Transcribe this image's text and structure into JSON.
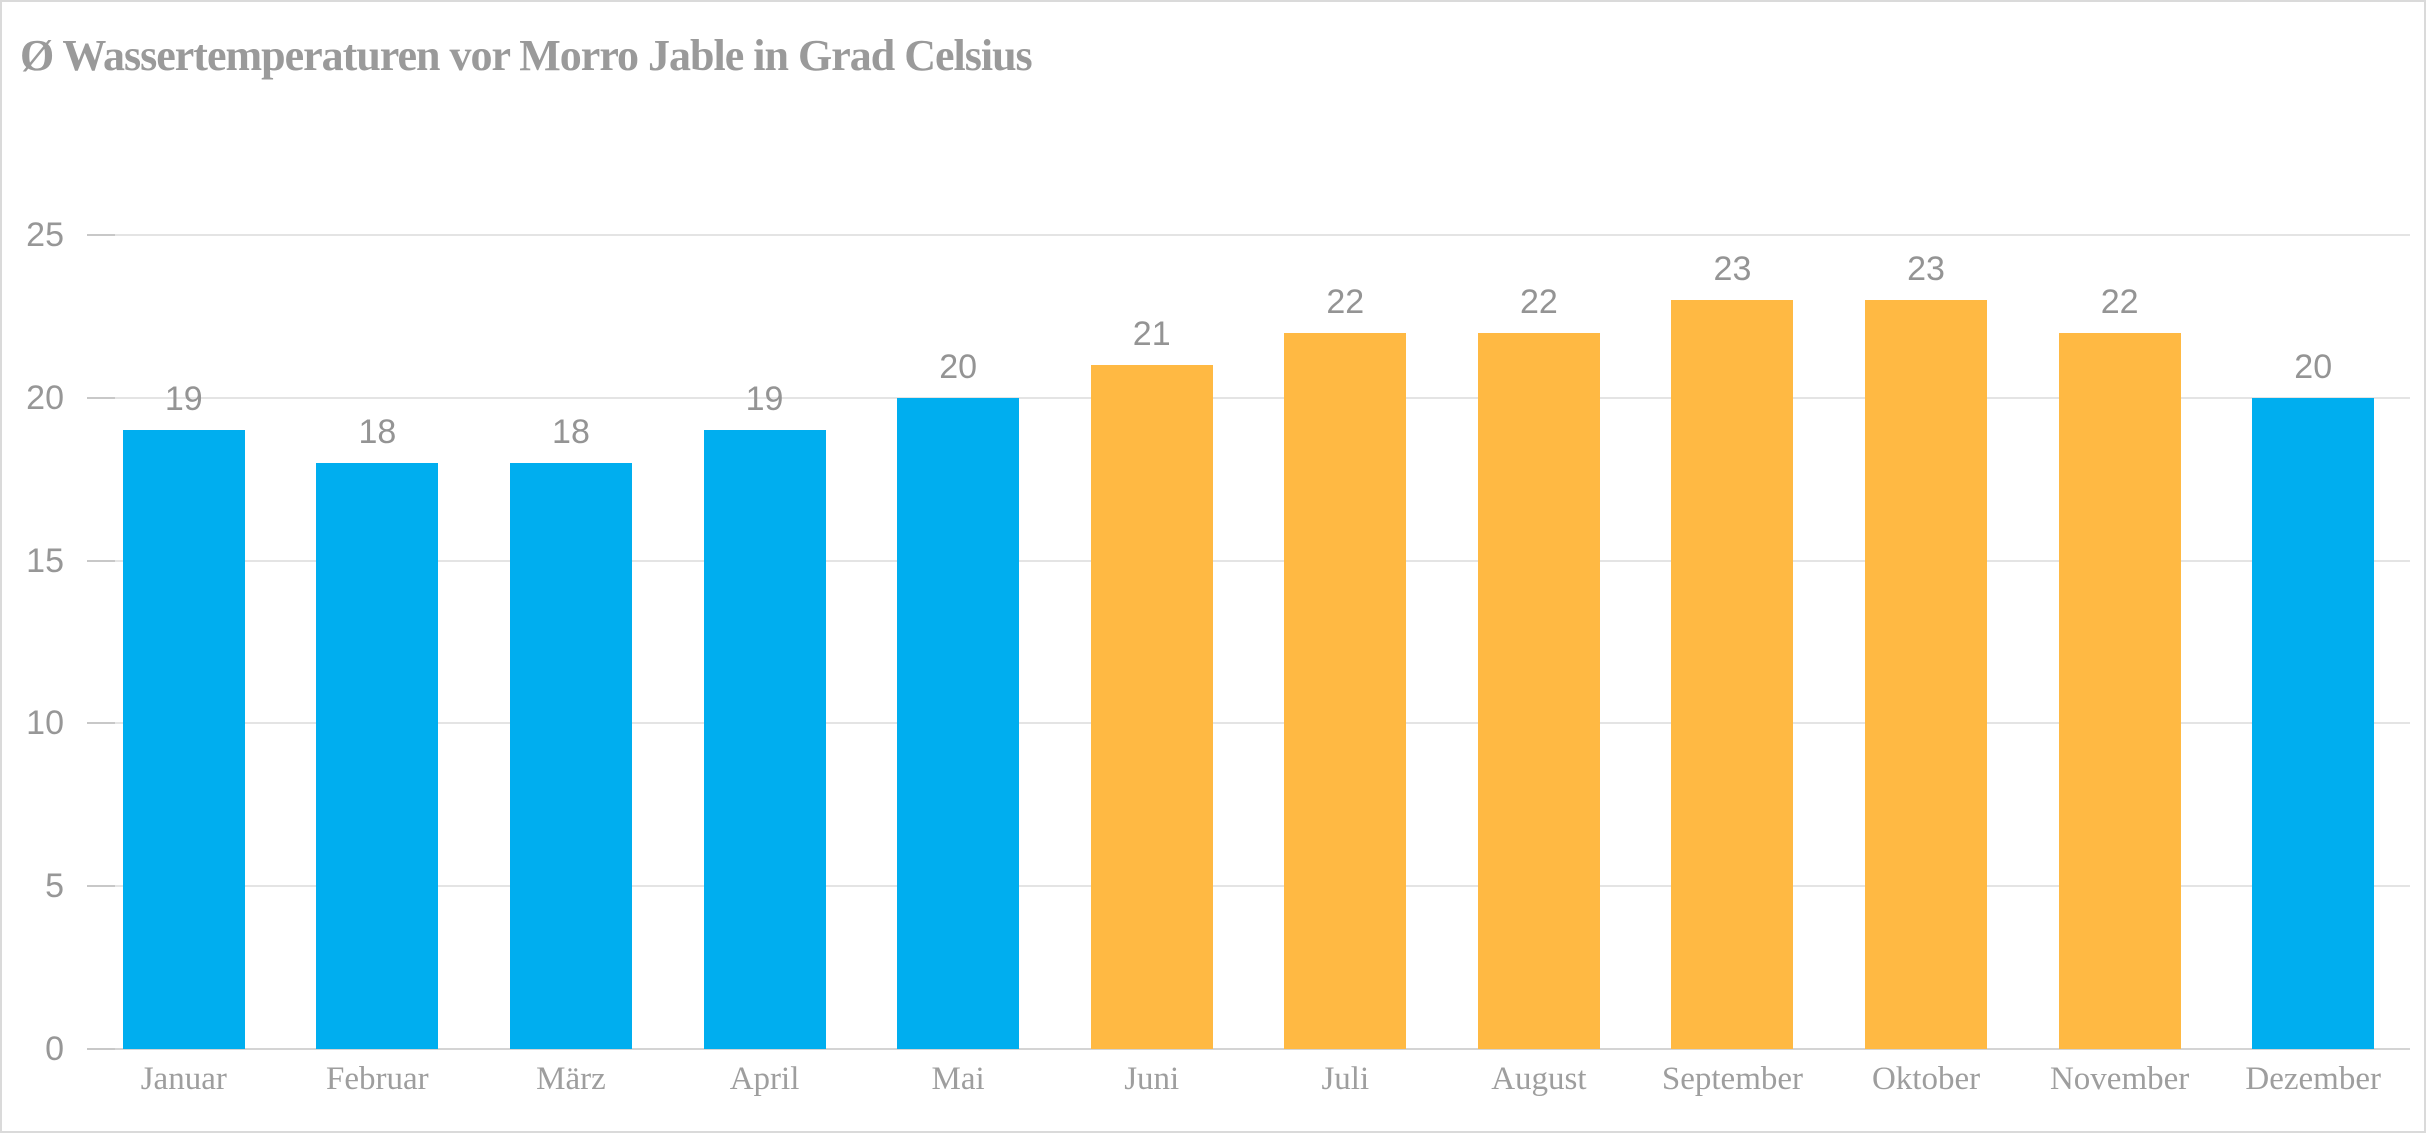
{
  "title": "Ø Wassertemperaturen vor Morro Jable in Grad Celsius",
  "chart_data": {
    "type": "bar",
    "title": "Ø Wassertemperaturen vor Morro Jable in Grad Celsius",
    "categories": [
      "Januar",
      "Februar",
      "März",
      "April",
      "Mai",
      "Juni",
      "Juli",
      "August",
      "September",
      "Oktober",
      "November",
      "Dezember"
    ],
    "values": [
      19,
      18,
      18,
      19,
      20,
      21,
      22,
      22,
      23,
      23,
      22,
      20
    ],
    "bar_colors": [
      "#00AEEF",
      "#00AEEF",
      "#00AEEF",
      "#00AEEF",
      "#00AEEF",
      "#FFB943",
      "#FFB943",
      "#FFB943",
      "#FFB943",
      "#FFB943",
      "#FFB943",
      "#00AEEF"
    ],
    "xlabel": "",
    "ylabel": "",
    "ylim": [
      0,
      25
    ],
    "yticks": [
      0,
      5,
      10,
      15,
      20,
      25
    ],
    "grid": true,
    "legend": false,
    "data_labels": true
  },
  "colors": {
    "blue": "#00AEEF",
    "orange": "#FFB943",
    "title_text": "#9A9A9A",
    "axis_text": "#979797",
    "value_label_text": "#949494",
    "month_label_text": "#9E9E9E",
    "gridline": "#E4E4E4",
    "tick": "#C8C8C8",
    "baseline": "#D4D4D4",
    "border": "#DADADA",
    "background": "#FFFFFF"
  }
}
